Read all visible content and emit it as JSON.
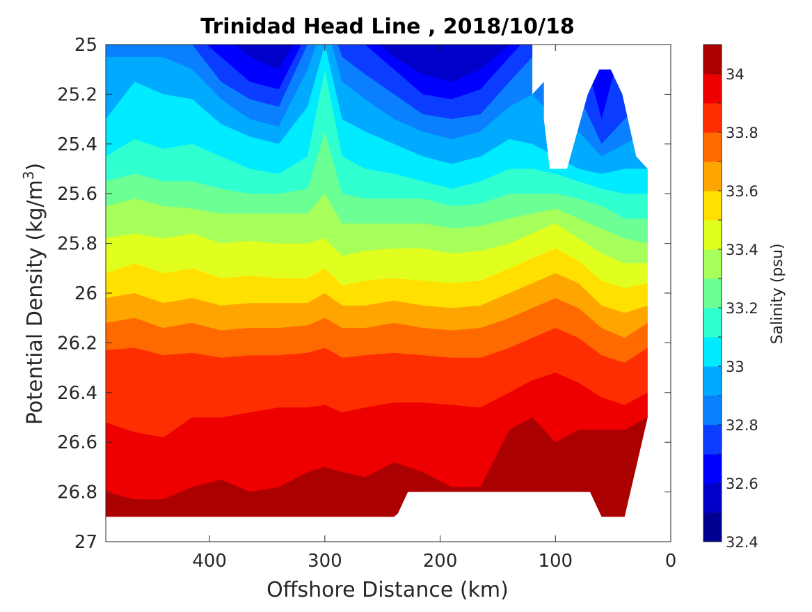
{
  "chart_data": {
    "type": "heatmap",
    "subtype": "filled-contour",
    "title": "Trinidad Head Line , 2018/10/18",
    "xlabel": "Offshore Distance (km)",
    "ylabel": "Potential Density (kg/m",
    "ylabel_superscript": "3",
    "ylabel_close": ")",
    "x_reversed": true,
    "y_reversed": true,
    "xlim": [
      0,
      490
    ],
    "ylim": [
      25,
      27
    ],
    "xticks": [
      400,
      300,
      200,
      100,
      0
    ],
    "xtick_labels": [
      "400",
      "300",
      "200",
      "100",
      "0"
    ],
    "yticks": [
      25,
      25.2,
      25.4,
      25.6,
      25.8,
      26,
      26.2,
      26.4,
      26.6,
      26.8,
      27
    ],
    "ytick_labels": [
      "25",
      "25.2",
      "25.4",
      "25.6",
      "25.8",
      "26",
      "26.2",
      "26.4",
      "26.6",
      "26.8",
      "27"
    ],
    "grid": false,
    "colorbar": {
      "label": "Salinity (psu)",
      "range": [
        32.4,
        34.1
      ],
      "step": 0.1,
      "ticks": [
        32.4,
        32.6,
        32.8,
        33,
        33.2,
        33.4,
        33.6,
        33.8,
        34
      ],
      "tick_labels": [
        "32.4",
        "32.6",
        "32.8",
        "33",
        "33.2",
        "33.4",
        "33.6",
        "33.8",
        "34"
      ],
      "colors": [
        "#000090",
        "#0000c8",
        "#0000ff",
        "#0a3dff",
        "#0a80ff",
        "#00aaff",
        "#00ebff",
        "#30ffcf",
        "#6bff94",
        "#a6ff5a",
        "#e1ff1e",
        "#ffe000",
        "#ffa500",
        "#ff6a00",
        "#ff2e00",
        "#ee0000",
        "#aa0000"
      ]
    },
    "x_stations": [
      490,
      465,
      440,
      415,
      390,
      365,
      340,
      315,
      300,
      285,
      265,
      240,
      215,
      190,
      165,
      140,
      120,
      100,
      80,
      60,
      40,
      20
    ],
    "isopleths": [
      {
        "level": 32.6,
        "density": [
          24.9,
          24.9,
          24.9,
          24.9,
          24.95,
          25.05,
          25.1,
          24.9,
          24.8,
          24.9,
          24.95,
          25.05,
          25.12,
          25.15,
          25.1,
          25.0,
          24.95,
          24.95,
          24.95,
          24.95,
          24.95,
          24.95
        ]
      },
      {
        "level": 32.7,
        "density": [
          24.95,
          24.95,
          24.95,
          24.95,
          25.05,
          25.15,
          25.18,
          24.95,
          24.8,
          24.95,
          25.0,
          25.1,
          25.2,
          25.22,
          25.18,
          25.05,
          24.95,
          24.95,
          24.95,
          25.3,
          24.95,
          24.95
        ]
      },
      {
        "level": 32.8,
        "density": [
          24.98,
          24.98,
          24.98,
          25.0,
          25.15,
          25.22,
          25.25,
          25.0,
          24.85,
          25.05,
          25.12,
          25.2,
          25.28,
          25.3,
          25.28,
          25.15,
          25.05,
          25.1,
          25.2,
          25.4,
          25.3,
          25.2
        ]
      },
      {
        "level": 32.9,
        "density": [
          25.05,
          25.05,
          25.05,
          25.1,
          25.22,
          25.3,
          25.33,
          25.1,
          24.9,
          25.15,
          25.22,
          25.3,
          25.35,
          25.38,
          25.35,
          25.25,
          25.2,
          25.3,
          25.35,
          25.45,
          25.4,
          25.35
        ]
      },
      {
        "level": 33.0,
        "density": [
          25.3,
          25.15,
          25.2,
          25.22,
          25.32,
          25.37,
          25.4,
          25.25,
          25.0,
          25.3,
          25.35,
          25.4,
          25.45,
          25.48,
          25.45,
          25.38,
          25.4,
          25.45,
          25.5,
          25.52,
          25.5,
          25.5
        ]
      },
      {
        "level": 33.1,
        "density": [
          25.45,
          25.38,
          25.42,
          25.4,
          25.45,
          25.5,
          25.52,
          25.45,
          25.1,
          25.45,
          25.5,
          25.52,
          25.55,
          25.58,
          25.55,
          25.5,
          25.5,
          25.52,
          25.55,
          25.58,
          25.6,
          25.6
        ]
      },
      {
        "level": 33.2,
        "density": [
          25.55,
          25.52,
          25.55,
          25.55,
          25.58,
          25.6,
          25.6,
          25.58,
          25.35,
          25.6,
          25.62,
          25.62,
          25.62,
          25.65,
          25.64,
          25.6,
          25.6,
          25.6,
          25.62,
          25.65,
          25.7,
          25.7
        ]
      },
      {
        "level": 33.3,
        "density": [
          25.65,
          25.62,
          25.65,
          25.66,
          25.68,
          25.68,
          25.68,
          25.68,
          25.6,
          25.72,
          25.72,
          25.72,
          25.72,
          25.74,
          25.73,
          25.7,
          25.68,
          25.66,
          25.7,
          25.74,
          25.78,
          25.8
        ]
      },
      {
        "level": 33.4,
        "density": [
          25.78,
          25.76,
          25.78,
          25.76,
          25.8,
          25.79,
          25.8,
          25.8,
          25.78,
          25.85,
          25.83,
          25.82,
          25.82,
          25.84,
          25.83,
          25.8,
          25.76,
          25.72,
          25.78,
          25.84,
          25.88,
          25.88
        ]
      },
      {
        "level": 33.5,
        "density": [
          25.92,
          25.88,
          25.92,
          25.9,
          25.94,
          25.93,
          25.94,
          25.94,
          25.9,
          25.97,
          25.95,
          25.94,
          25.95,
          25.96,
          25.95,
          25.9,
          25.86,
          25.82,
          25.87,
          25.95,
          25.98,
          25.96
        ]
      },
      {
        "level": 33.6,
        "density": [
          26.02,
          26.0,
          26.04,
          26.02,
          26.05,
          26.04,
          26.04,
          26.04,
          26.0,
          26.05,
          26.05,
          26.03,
          26.05,
          26.06,
          26.05,
          26.0,
          25.96,
          25.92,
          25.96,
          26.05,
          26.08,
          26.05
        ]
      },
      {
        "level": 33.7,
        "density": [
          26.12,
          26.1,
          26.14,
          26.12,
          26.15,
          26.14,
          26.14,
          26.13,
          26.1,
          26.14,
          26.14,
          26.12,
          26.14,
          26.15,
          26.14,
          26.1,
          26.06,
          26.02,
          26.06,
          26.14,
          26.18,
          26.12
        ]
      },
      {
        "level": 33.8,
        "density": [
          26.23,
          26.22,
          26.25,
          26.24,
          26.26,
          26.25,
          26.25,
          26.24,
          26.22,
          26.26,
          26.25,
          26.24,
          26.25,
          26.26,
          26.26,
          26.22,
          26.18,
          26.14,
          26.18,
          26.25,
          26.28,
          26.22
        ]
      },
      {
        "level": 33.9,
        "density": [
          26.52,
          26.56,
          26.58,
          26.5,
          26.5,
          26.48,
          26.46,
          26.46,
          26.45,
          26.48,
          26.46,
          26.44,
          26.44,
          26.45,
          26.46,
          26.4,
          26.35,
          26.32,
          26.36,
          26.42,
          26.45,
          26.4
        ]
      },
      {
        "level": 34.0,
        "density": [
          26.8,
          26.83,
          26.83,
          26.78,
          26.75,
          26.8,
          26.78,
          26.72,
          26.7,
          26.72,
          26.74,
          26.68,
          26.72,
          26.78,
          26.78,
          26.55,
          26.5,
          26.6,
          26.55,
          26.55,
          26.55,
          26.5
        ]
      }
    ],
    "data_bottom": [
      26.9,
      26.9,
      26.9,
      26.9,
      26.9,
      26.9,
      26.9,
      26.9,
      26.9,
      26.9,
      26.9,
      26.9,
      26.8,
      26.8,
      26.8,
      26.8,
      26.8,
      26.8,
      26.8,
      26.9,
      26.9,
      26.5
    ],
    "masked_regions": [
      [
        [
          120,
          25.0
        ],
        [
          0,
          25.0
        ],
        [
          0,
          25.6
        ],
        [
          30,
          25.45
        ],
        [
          42,
          25.2
        ],
        [
          52,
          25.1
        ],
        [
          62,
          25.1
        ],
        [
          72,
          25.2
        ],
        [
          90,
          25.5
        ],
        [
          105,
          25.5
        ],
        [
          110,
          25.3
        ],
        [
          110,
          25.15
        ],
        [
          120,
          25.2
        ]
      ],
      [
        [
          238,
          26.9
        ],
        [
          228,
          26.8
        ],
        [
          70,
          26.8
        ],
        [
          60,
          26.9
        ]
      ]
    ]
  }
}
